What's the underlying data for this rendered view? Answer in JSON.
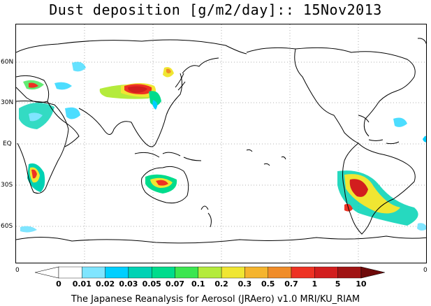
{
  "title": "Dust deposition [g/m2/day]:: 15Nov2013",
  "map": {
    "lat_labels": [
      "60N",
      "30N",
      "EQ",
      "30S",
      "60S"
    ],
    "edge_zero_left": "0",
    "edge_zero_right": "0"
  },
  "colorbar": {
    "labels": [
      "0",
      "0.01",
      "0.02",
      "0.03",
      "0.05",
      "0.07",
      "0.1",
      "0.2",
      "0.3",
      "0.5",
      "0.7",
      "1",
      "5",
      "10"
    ],
    "colors": [
      "#ffffff",
      "#ffffff",
      "#7fe5ff",
      "#00cfff",
      "#00d2b4",
      "#00dc8c",
      "#3ce650",
      "#b4eb3c",
      "#f0e632",
      "#f5b42d",
      "#f08c28",
      "#ee3223",
      "#d21e1e",
      "#a01414",
      "#6e0a0a"
    ]
  },
  "footer": "The Japanese Reanalysis for Aerosol (JRAero) v1.0 MRI/KU_RIAM"
}
